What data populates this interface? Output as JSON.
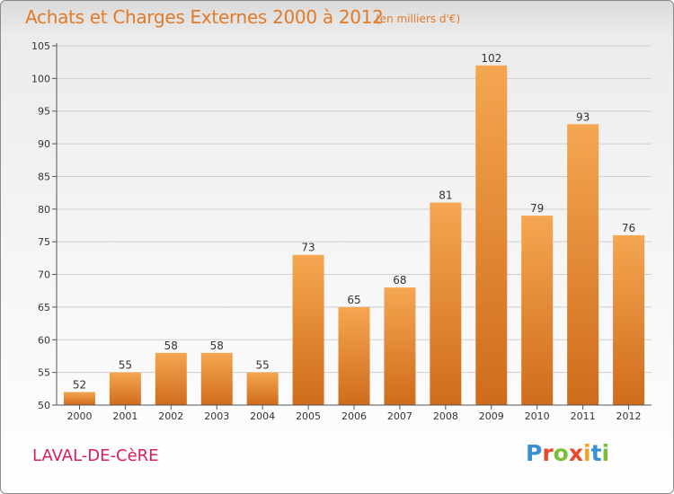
{
  "header": {
    "title": "Achats et Charges Externes 2000 à 2012",
    "subtitle": "(en milliers d'€)"
  },
  "footer": {
    "commune": "LAVAL-DE-CèRE",
    "brand_letters": [
      {
        "char": "P",
        "color": "#3a8fd0"
      },
      {
        "char": "r",
        "color": "#e8482c"
      },
      {
        "char": "o",
        "color": "#7bbf38"
      },
      {
        "char": "x",
        "color": "#e8482c"
      },
      {
        "char": "i",
        "color": "#f2a226"
      },
      {
        "char": "t",
        "color": "#3a8fd0"
      },
      {
        "char": "i",
        "color": "#7bbf38"
      }
    ]
  },
  "chart_data": {
    "type": "bar",
    "title": "Achats et Charges Externes 2000 à 2012",
    "subtitle": "(en milliers d'€)",
    "categories": [
      "2000",
      "2001",
      "2002",
      "2003",
      "2004",
      "2005",
      "2006",
      "2007",
      "2008",
      "2009",
      "2010",
      "2011",
      "2012"
    ],
    "values": [
      52,
      55,
      58,
      58,
      55,
      73,
      65,
      68,
      81,
      102,
      79,
      93,
      76
    ],
    "ylim": [
      50,
      105
    ],
    "yticks": [
      50,
      55,
      60,
      65,
      70,
      75,
      80,
      85,
      90,
      95,
      100,
      105
    ],
    "grid": true,
    "data_labels": true,
    "colors": {
      "bar_light": "#f5a650",
      "bar_dark": "#cf6c1c",
      "axis": "#555555",
      "grid": "#cfcfcf",
      "text": "#333333"
    }
  }
}
